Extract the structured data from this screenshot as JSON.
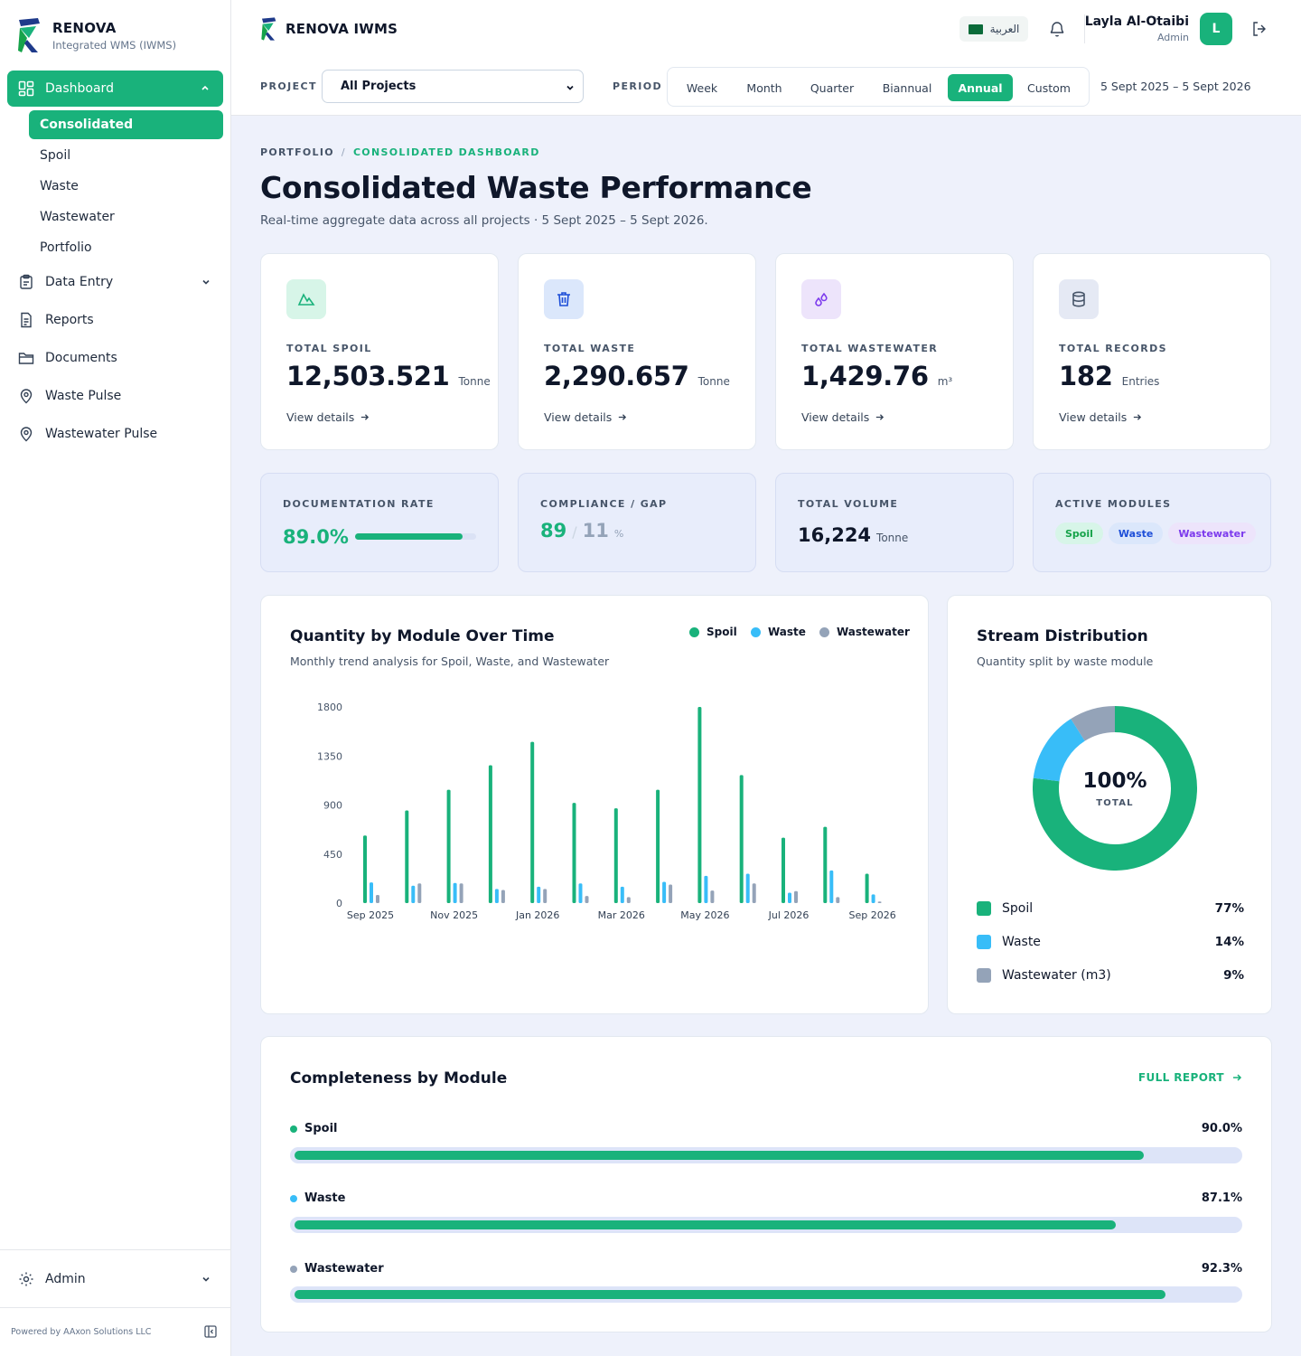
{
  "brand": {
    "name": "RENOVA",
    "subtitle": "Integrated WMS (IWMS)",
    "header_title": "RENOVA IWMS",
    "powered_by": "Powered by AAxon Solutions LLC"
  },
  "sidebar": {
    "dashboard_label": "Dashboard",
    "dashboard_sub": [
      "Consolidated",
      "Spoil",
      "Waste",
      "Wastewater",
      "Portfolio"
    ],
    "items": [
      {
        "label": "Data Entry",
        "icon": "clipboard-icon"
      },
      {
        "label": "Reports",
        "icon": "document-icon"
      },
      {
        "label": "Documents",
        "icon": "folder-icon"
      },
      {
        "label": "Waste Pulse",
        "icon": "map-pin-icon"
      },
      {
        "label": "Wastewater Pulse",
        "icon": "map-pin-icon"
      }
    ],
    "admin_label": "Admin"
  },
  "header": {
    "language": "العربية",
    "user": {
      "name": "Layla Al-Otaibi",
      "role": "Admin",
      "initial": "L"
    },
    "project_label": "PROJECT",
    "project_value": "All Projects",
    "period_label": "PERIOD",
    "periods": [
      "Week",
      "Month",
      "Quarter",
      "Biannual",
      "Annual",
      "Custom"
    ],
    "active_period": "Annual",
    "date_range": "5 Sept 2025 – 5 Sept 2026"
  },
  "page": {
    "breadcrumb": [
      "PORTFOLIO",
      "CONSOLIDATED DASHBOARD"
    ],
    "title": "Consolidated Waste Performance",
    "subtitle": "Real-time aggregate data across all projects · 5 Sept 2025 – 5 Sept 2026."
  },
  "kpis": [
    {
      "label": "TOTAL SPOIL",
      "value": "12,503.521",
      "unit": "Tonne",
      "link": "View details",
      "icon": "mountain-icon"
    },
    {
      "label": "TOTAL WASTE",
      "value": "2,290.657",
      "unit": "Tonne",
      "link": "View details",
      "icon": "trash-icon"
    },
    {
      "label": "TOTAL WASTEWATER",
      "value": "1,429.76",
      "unit": "m³",
      "link": "View details",
      "icon": "droplets-icon"
    },
    {
      "label": "TOTAL RECORDS",
      "value": "182",
      "unit": "Entries",
      "link": "View details",
      "icon": "database-icon"
    }
  ],
  "stats": {
    "documentation": {
      "label": "DOCUMENTATION RATE",
      "value": "89.0%",
      "fraction": 0.89
    },
    "compliance": {
      "label": "COMPLIANCE / GAP",
      "compliance": "89",
      "gap": "11",
      "unit": "%"
    },
    "volume": {
      "label": "TOTAL VOLUME",
      "value": "16,224",
      "unit": "Tonne"
    },
    "modules": {
      "label": "ACTIVE MODULES",
      "tags": [
        "Spoil",
        "Waste",
        "Wastewater"
      ]
    }
  },
  "colors": {
    "spoil": "#19b27b",
    "waste": "#38bdf8",
    "wastewater": "#94a3b8",
    "accent": "#19b27b"
  },
  "bar_chart": {
    "title": "Quantity by Module Over Time",
    "subtitle": "Monthly trend analysis for Spoil, Waste, and Wastewater",
    "legend": [
      "Spoil",
      "Waste",
      "Wastewater"
    ]
  },
  "donut": {
    "title": "Stream Distribution",
    "subtitle": "Quantity split by waste module",
    "center_value": "100%",
    "center_label": "TOTAL",
    "legend": [
      {
        "label": "Spoil",
        "pct": "77%"
      },
      {
        "label": "Waste",
        "pct": "14%"
      },
      {
        "label": "Wastewater (m3)",
        "pct": "9%"
      }
    ]
  },
  "completeness": {
    "title": "Completeness by Module",
    "link": "FULL REPORT",
    "rows": [
      {
        "label": "Spoil",
        "pct": "90.0%",
        "value": 0.9
      },
      {
        "label": "Waste",
        "pct": "87.1%",
        "value": 0.871
      },
      {
        "label": "Wastewater",
        "pct": "92.3%",
        "value": 0.923
      }
    ]
  },
  "chart_data": [
    {
      "type": "bar",
      "title": "Quantity by Module Over Time",
      "subtitle": "Monthly trend analysis for Spoil, Waste, and Wastewater",
      "categories": [
        "Sep 2025",
        "Oct 2025",
        "Nov 2025",
        "Dec 2025",
        "Jan 2026",
        "Feb 2026",
        "Mar 2026",
        "Apr 2026",
        "May 2026",
        "Jun 2026",
        "Jul 2026",
        "Aug 2026",
        "Sep 2026"
      ],
      "tick_labels": [
        "Sep 2025",
        "Nov 2025",
        "Jan 2026",
        "Mar 2026",
        "May 2026",
        "Jul 2026",
        "Sep 2026"
      ],
      "yticks": [
        0,
        450,
        900,
        1350,
        1800
      ],
      "ylim": [
        0,
        1800
      ],
      "grid": false,
      "legend_position": "top-right",
      "series": [
        {
          "name": "Spoil",
          "values": [
            620,
            850,
            1040,
            1265,
            1480,
            920,
            870,
            1040,
            1800,
            1175,
            600,
            700,
            270
          ]
        },
        {
          "name": "Waste",
          "values": [
            190,
            160,
            185,
            130,
            150,
            180,
            150,
            195,
            250,
            270,
            95,
            300,
            80
          ]
        },
        {
          "name": "Wastewater",
          "values": [
            75,
            180,
            180,
            120,
            130,
            65,
            55,
            170,
            115,
            180,
            110,
            55,
            15
          ]
        }
      ]
    },
    {
      "type": "pie",
      "title": "Stream Distribution",
      "subtitle": "Quantity split by waste module",
      "categories": [
        "Spoil",
        "Waste",
        "Wastewater (m3)"
      ],
      "values": [
        77,
        14,
        9
      ]
    }
  ]
}
